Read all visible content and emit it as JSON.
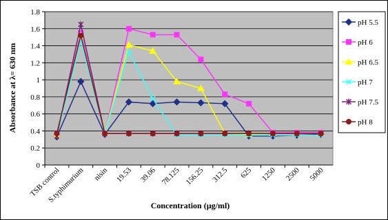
{
  "chart_data": {
    "type": "line",
    "title": "",
    "xlabel": "Concentration (µg/ml)",
    "ylabel": "Absorbance at λ= 630 nm",
    "categories": [
      "TSB control",
      "S.typhimurium",
      "nisin",
      "19.53",
      "39.06",
      "78.125",
      "156.25",
      "312.5",
      "625",
      "1250",
      "2500",
      "5000"
    ],
    "ylim": [
      0,
      1.8
    ],
    "yticks": [
      "0",
      "0.2",
      "0.4",
      "0.6",
      "0.8",
      "1",
      "1.2",
      "1.4",
      "1.6",
      "1.8"
    ],
    "grid": true,
    "legend_position": "right",
    "series": [
      {
        "name": "pH 5.5",
        "color": "#1f2f8a",
        "marker": "diamond",
        "values": [
          0.33,
          0.98,
          0.36,
          0.74,
          0.72,
          0.74,
          0.73,
          0.72,
          0.34,
          0.34,
          0.35,
          0.36
        ]
      },
      {
        "name": "pH 6",
        "color": "#ff33ff",
        "marker": "square",
        "values": [
          0.35,
          1.55,
          0.37,
          1.6,
          1.53,
          1.53,
          1.24,
          0.83,
          0.72,
          0.38,
          0.38,
          0.38
        ]
      },
      {
        "name": "pH 6.5",
        "color": "#ffff00",
        "marker": "triangle",
        "values": [
          0.35,
          1.52,
          0.38,
          1.41,
          1.34,
          0.98,
          0.9,
          0.37,
          0.36,
          0.37,
          0.37,
          0.37
        ]
      },
      {
        "name": "pH 7",
        "color": "#33ffff",
        "marker": "x",
        "values": [
          0.34,
          1.45,
          0.37,
          1.33,
          0.78,
          0.35,
          0.35,
          0.35,
          0.35,
          0.35,
          0.35,
          0.35
        ]
      },
      {
        "name": "pH 7.5",
        "color": "#7a1f7a",
        "marker": "star",
        "values": [
          0.34,
          1.65,
          0.37,
          0.37,
          0.37,
          0.37,
          0.37,
          0.37,
          0.37,
          0.37,
          0.37,
          0.37
        ]
      },
      {
        "name": "pH 8",
        "color": "#8b1a1a",
        "marker": "circle",
        "values": [
          0.37,
          1.52,
          0.37,
          0.37,
          0.37,
          0.37,
          0.37,
          0.37,
          0.37,
          0.37,
          0.37,
          0.37
        ]
      }
    ]
  }
}
